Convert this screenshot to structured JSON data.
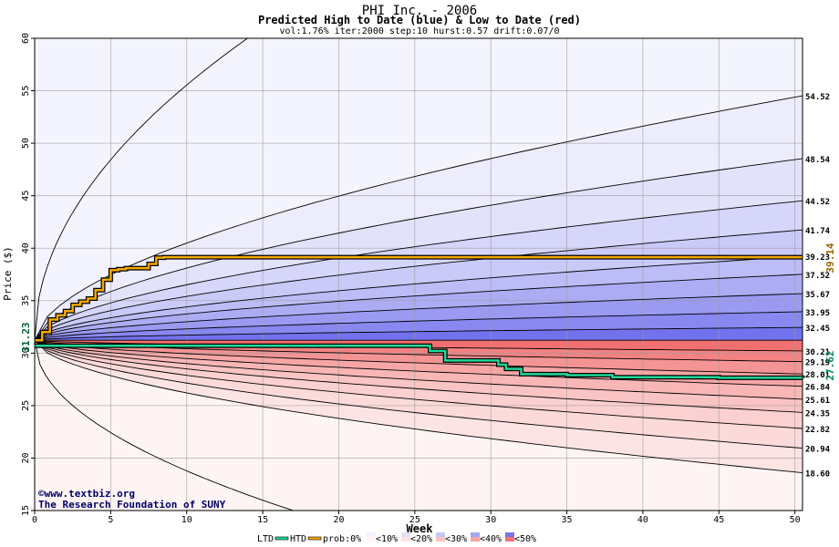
{
  "chart_data": {
    "type": "area",
    "title": "PHI Inc. - 2006",
    "subtitle": "Predicted High to Date (blue) &  Low to Date (red)",
    "params": "vol:1.76% iter:2000 step:10 hurst:0.57 drift:0.07/0",
    "xlabel": "Week",
    "ylabel": "Price ($)",
    "xlim": [
      0,
      50.5
    ],
    "ylim": [
      15,
      60
    ],
    "xticks": [
      0,
      5,
      10,
      15,
      20,
      25,
      30,
      35,
      40,
      45,
      50
    ],
    "yticks": [
      15,
      20,
      25,
      30,
      35,
      40,
      45,
      50,
      55,
      60
    ],
    "grid": true,
    "start_price": 31.23,
    "start_label": "31.23",
    "high_label": "39.14",
    "low_label": "27.62",
    "colors": {
      "high_line": "#f5a800",
      "low_line": "#1fd99a",
      "blue_band_dark": "#7070ee",
      "red_band_dark": "#f07070",
      "start_label_color": "#006633",
      "high_label_color": "#996600",
      "low_label_color": "#008866"
    },
    "high_bands": [
      {
        "label": "32.45",
        "end": 32.45
      },
      {
        "label": "33.95",
        "end": 33.95
      },
      {
        "label": "35.67",
        "end": 35.67
      },
      {
        "label": "37.52",
        "end": 37.52
      },
      {
        "label": "39.23",
        "end": 39.23
      },
      {
        "label": "41.74",
        "end": 41.74
      },
      {
        "label": "44.52",
        "end": 44.52
      },
      {
        "label": "48.54",
        "end": 48.54
      },
      {
        "label": "54.52",
        "end": 54.52
      }
    ],
    "low_bands": [
      {
        "label": "30.21",
        "end": 30.21
      },
      {
        "label": "29.19",
        "end": 29.19
      },
      {
        "label": "28.01",
        "end": 28.01
      },
      {
        "label": "26.84",
        "end": 26.84
      },
      {
        "label": "25.61",
        "end": 25.61
      },
      {
        "label": "24.35",
        "end": 24.35
      },
      {
        "label": "22.82",
        "end": 22.82
      },
      {
        "label": "20.94",
        "end": 20.94
      },
      {
        "label": "18.60",
        "end": 18.6
      }
    ],
    "outer_high_curve": {
      "end_at_week_14": 60
    },
    "outer_low_curve": {
      "end_at_week_17": 15
    },
    "high_to_date": {
      "x": [
        0,
        0.5,
        1,
        1.5,
        2,
        2.5,
        3,
        3.5,
        4,
        4.5,
        5,
        5.5,
        6,
        6.5,
        7,
        7.5,
        8,
        8.5,
        10,
        20,
        30,
        40,
        50.5
      ],
      "y": [
        31.23,
        32.0,
        33.2,
        33.6,
        34.0,
        34.6,
        34.9,
        35.2,
        36.0,
        37.0,
        37.9,
        38.0,
        38.1,
        38.1,
        38.1,
        38.5,
        39.1,
        39.14,
        39.14,
        39.14,
        39.14,
        39.14,
        39.14
      ]
    },
    "low_to_date": {
      "x": [
        0,
        5,
        10,
        15,
        20,
        25.5,
        26,
        26.5,
        27,
        28,
        30,
        30.5,
        31,
        31.5,
        32,
        35,
        37.5,
        38,
        40,
        45,
        50.5
      ],
      "y": [
        30.7,
        30.7,
        30.7,
        30.7,
        30.7,
        30.7,
        30.2,
        30.2,
        29.3,
        29.3,
        29.3,
        28.9,
        28.5,
        28.5,
        28.0,
        27.9,
        27.9,
        27.7,
        27.7,
        27.65,
        27.62
      ]
    }
  },
  "footer": {
    "copyright": "©www.textbiz.org",
    "organization": "The Research Foundation of SUNY"
  },
  "legend": {
    "ltd": "LTD",
    "htd": "HTD",
    "prob_label": "prob:0%",
    "items": [
      "<10%",
      "<20%",
      "<30%",
      "<40%",
      "<50%"
    ]
  }
}
